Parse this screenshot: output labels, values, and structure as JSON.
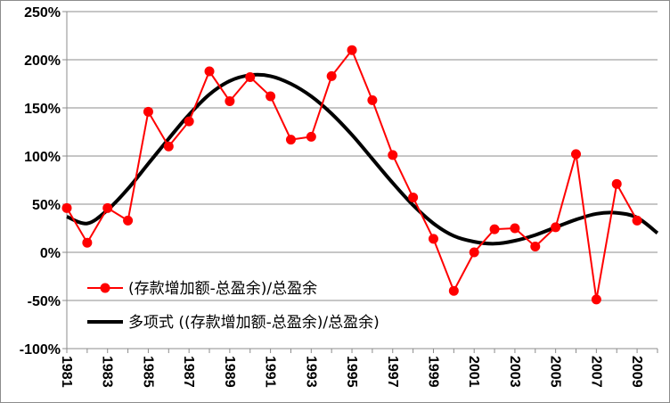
{
  "chart_data": {
    "type": "line",
    "title": "",
    "xlabel": "",
    "ylabel": "",
    "ylim": [
      -100,
      250
    ],
    "y_tick_values": [
      -100,
      -50,
      0,
      50,
      100,
      150,
      200,
      250
    ],
    "y_tick_labels": [
      "-100%",
      "-50%",
      "0%",
      "50%",
      "100%",
      "150%",
      "200%",
      "250%"
    ],
    "x_tick_labels": [
      "1981",
      "1983",
      "1985",
      "1987",
      "1989",
      "1991",
      "1993",
      "1995",
      "1997",
      "1999",
      "2001",
      "2003",
      "2005",
      "2007",
      "2009"
    ],
    "grid": "horizontal",
    "legend_position": "bottom-left",
    "series": [
      {
        "name": "(存款增加额-总盈余)/总盈余",
        "color": "#ff0000",
        "marker": "circle",
        "x": [
          1981,
          1982,
          1983,
          1984,
          1985,
          1986,
          1987,
          1988,
          1989,
          1990,
          1991,
          1992,
          1993,
          1994,
          1995,
          1996,
          1997,
          1998,
          1999,
          2000,
          2001,
          2002,
          2003,
          2004,
          2005,
          2006,
          2007,
          2008,
          2009
        ],
        "y": [
          46,
          10,
          46,
          33,
          146,
          110,
          136,
          188,
          157,
          182,
          162,
          117,
          120,
          183,
          210,
          158,
          101,
          57,
          14,
          -40,
          0,
          24,
          25,
          6,
          26,
          102,
          -49,
          71,
          33
        ]
      },
      {
        "name": "多项式 ((存款增加额-总盈余)/总盈余)",
        "color": "#000000",
        "marker": "none",
        "x": [
          1981,
          1982,
          1983,
          1984,
          1985,
          1986,
          1987,
          1988,
          1989,
          1990,
          1991,
          1992,
          1993,
          1994,
          1995,
          1996,
          1997,
          1998,
          1999,
          2000,
          2001,
          2002,
          2003,
          2004,
          2005,
          2006,
          2007,
          2008,
          2009,
          2010
        ],
        "y": [
          37,
          30,
          44,
          66,
          92,
          118,
          143,
          164,
          178,
          184,
          183,
          175,
          162,
          144,
          122,
          97,
          72,
          49,
          30,
          17,
          11,
          9,
          12,
          18,
          26,
          34,
          40,
          41,
          36,
          20
        ]
      }
    ]
  }
}
